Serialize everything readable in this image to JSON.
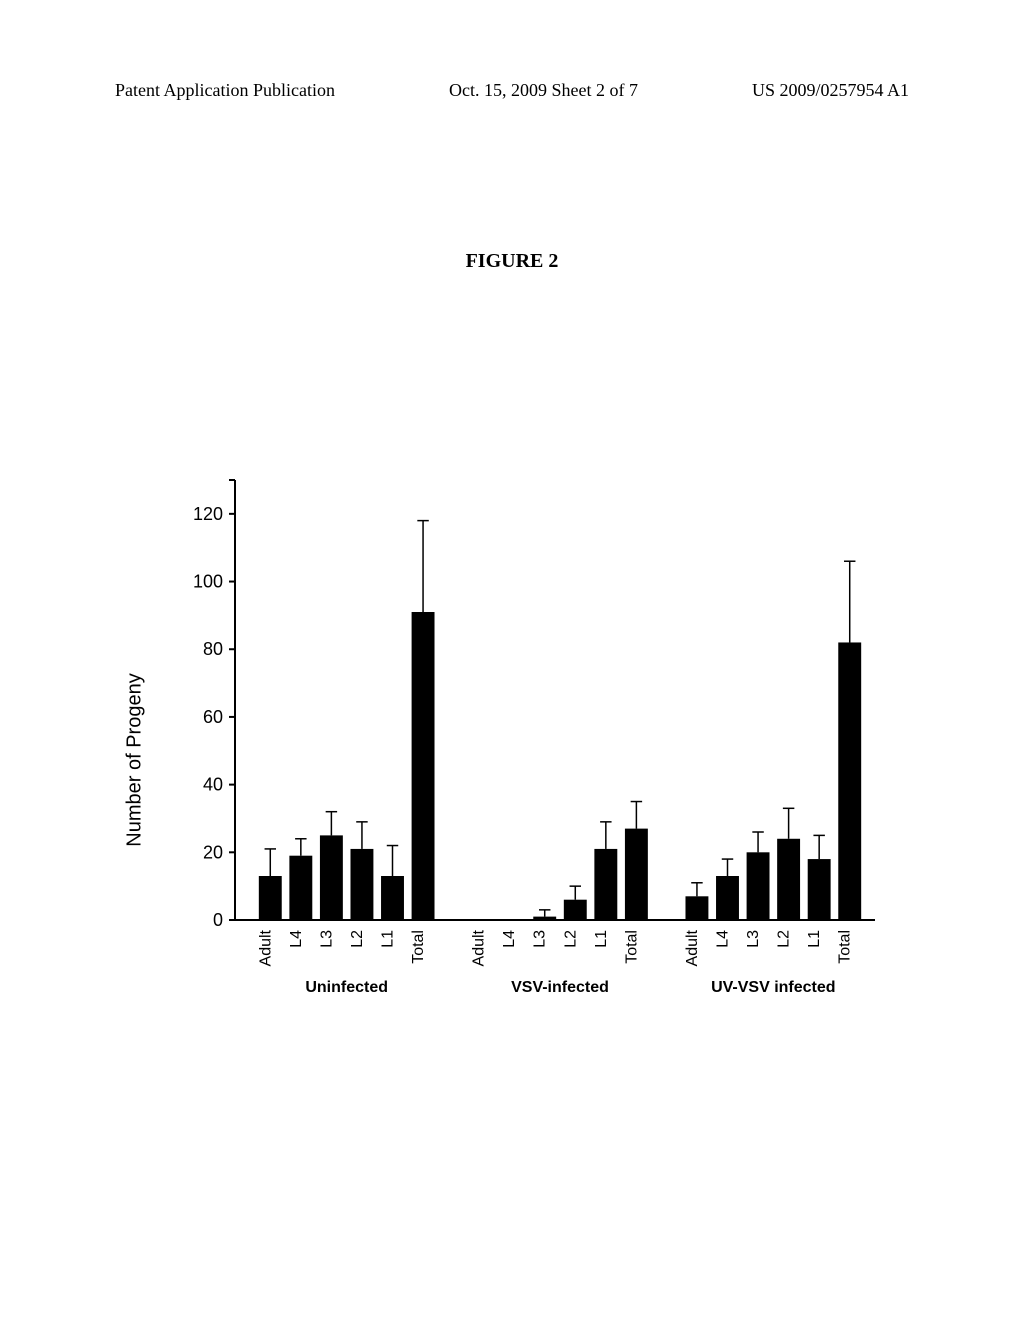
{
  "header": {
    "left": "Patent Application Publication",
    "mid": "Oct. 15, 2009  Sheet 2 of 7",
    "right": "US 2009/0257954 A1"
  },
  "figure_title": "FIGURE 2",
  "chart": {
    "type": "bar",
    "ylabel": "Number of Progeny",
    "ylim": [
      0,
      130
    ],
    "ytick_step": 20,
    "yticks": [
      0,
      20,
      40,
      60,
      80,
      100,
      120
    ],
    "categories": [
      "Adult",
      "L4",
      "L3",
      "L2",
      "L1",
      "Total"
    ],
    "groups": [
      {
        "label": "Uninfected",
        "values": [
          13,
          19,
          25,
          21,
          13,
          91
        ],
        "errors": [
          8,
          5,
          7,
          8,
          9,
          27
        ]
      },
      {
        "label": "VSV-infected",
        "values": [
          0,
          0,
          0,
          1,
          6,
          21,
          27
        ],
        "errors": [
          0,
          0,
          0,
          2,
          4,
          8,
          8
        ],
        "use_values": [
          0,
          0,
          1,
          6,
          21,
          27
        ],
        "use_errors": [
          0,
          0,
          2,
          4,
          8,
          8
        ]
      },
      {
        "label": "UV-VSV infected",
        "values": [
          7,
          13,
          20,
          24,
          18,
          82
        ],
        "errors": [
          4,
          5,
          6,
          9,
          7,
          24
        ]
      }
    ],
    "bar_color": "#000000",
    "background_color": "#ffffff",
    "axis_color": "#000000",
    "bar_width_ratio": 0.75,
    "error_cap_ratio": 0.5
  }
}
